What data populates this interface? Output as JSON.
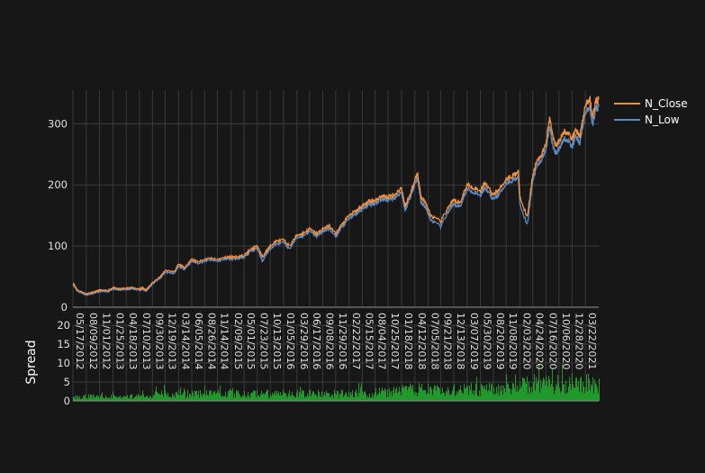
{
  "chart_data": [
    {
      "type": "line",
      "title": "",
      "xlabel": "",
      "ylabel": "",
      "ylim": [
        0,
        355
      ],
      "yticks": [
        0,
        100,
        200,
        300
      ],
      "grid": true,
      "legend_position": "top-right",
      "series": [
        {
          "name": "N_Close",
          "color": "#f0913a",
          "x": [
            "2012-05-17",
            "2012-06-15",
            "2012-08-09",
            "2012-10-01",
            "2012-11-01",
            "2012-12-20",
            "2013-01-25",
            "2013-03-01",
            "2013-04-18",
            "2013-05-20",
            "2013-07-10",
            "2013-07-29",
            "2013-08-20",
            "2013-10-01",
            "2013-11-20",
            "2013-12-19",
            "2014-02-15",
            "2014-03-14",
            "2014-04-20",
            "2014-06-05",
            "2014-07-15",
            "2014-09-26",
            "2014-11-14",
            "2015-01-10",
            "2015-02-09",
            "2015-04-01",
            "2015-05-01",
            "2015-06-15",
            "2015-07-23",
            "2015-08-25",
            "2015-09-20",
            "2015-10-13",
            "2015-11-20",
            "2016-01-05",
            "2016-02-11",
            "2016-03-29",
            "2016-05-01",
            "2016-06-17",
            "2016-08-01",
            "2016-09-08",
            "2016-10-20",
            "2016-11-29",
            "2016-12-29",
            "2017-02-22",
            "2017-04-10",
            "2017-05-15",
            "2017-06-20",
            "2017-08-04",
            "2017-09-15",
            "2017-10-25",
            "2017-12-10",
            "2018-01-18",
            "2018-02-09",
            "2018-03-15",
            "2018-04-12",
            "2018-04-30",
            "2018-05-20",
            "2018-06-20",
            "2018-07-20",
            "2018-09-21",
            "2018-11-01",
            "2018-12-13",
            "2019-01-20",
            "2019-03-07",
            "2019-04-25",
            "2019-05-30",
            "2019-06-28",
            "2019-08-14",
            "2019-09-20",
            "2019-11-08",
            "2019-12-20",
            "2020-01-24",
            "2020-02-03",
            "2020-03-20",
            "2020-04-24",
            "2020-05-20",
            "2020-06-20",
            "2020-07-16",
            "2020-08-10",
            "2020-08-26",
            "2020-09-15",
            "2020-10-06",
            "2020-11-10",
            "2020-12-28",
            "2021-01-20",
            "2021-02-15",
            "2021-03-22",
            "2021-04-20",
            "2021-05-05",
            "2021-05-25",
            "2021-06-14"
          ],
          "y": [
            40,
            28,
            22,
            25,
            28,
            27,
            32,
            30,
            31,
            32,
            30,
            32,
            28,
            40,
            50,
            60,
            58,
            70,
            65,
            78,
            75,
            80,
            78,
            82,
            82,
            83,
            85,
            95,
            100,
            82,
            92,
            100,
            108,
            110,
            100,
            118,
            120,
            128,
            120,
            128,
            133,
            120,
            132,
            150,
            158,
            165,
            172,
            175,
            182,
            180,
            185,
            195,
            165,
            185,
            210,
            218,
            180,
            170,
            150,
            140,
            160,
            175,
            170,
            200,
            195,
            190,
            205,
            185,
            190,
            210,
            215,
            222,
            180,
            148,
            215,
            240,
            250,
            270,
            310,
            280,
            265,
            270,
            290,
            275,
            290,
            280,
            330,
            340,
            310,
            335,
            340
          ]
        },
        {
          "name": "N_Low",
          "color": "#5b8cc8",
          "x": [
            "2012-05-17",
            "2012-06-15",
            "2012-08-09",
            "2012-10-01",
            "2012-11-01",
            "2012-12-20",
            "2013-01-25",
            "2013-03-01",
            "2013-04-18",
            "2013-05-20",
            "2013-07-10",
            "2013-07-29",
            "2013-08-20",
            "2013-10-01",
            "2013-11-20",
            "2013-12-19",
            "2014-02-15",
            "2014-03-14",
            "2014-04-20",
            "2014-06-05",
            "2014-07-15",
            "2014-09-26",
            "2014-11-14",
            "2015-01-10",
            "2015-02-09",
            "2015-04-01",
            "2015-05-01",
            "2015-06-15",
            "2015-07-23",
            "2015-08-25",
            "2015-09-20",
            "2015-10-13",
            "2015-11-20",
            "2016-01-05",
            "2016-02-11",
            "2016-03-29",
            "2016-05-01",
            "2016-06-17",
            "2016-08-01",
            "2016-09-08",
            "2016-10-20",
            "2016-11-29",
            "2016-12-29",
            "2017-02-22",
            "2017-04-10",
            "2017-05-15",
            "2017-06-20",
            "2017-08-04",
            "2017-09-15",
            "2017-10-25",
            "2017-12-10",
            "2018-01-18",
            "2018-02-09",
            "2018-03-15",
            "2018-04-12",
            "2018-04-30",
            "2018-05-20",
            "2018-06-20",
            "2018-07-20",
            "2018-09-21",
            "2018-11-01",
            "2018-12-13",
            "2019-01-20",
            "2019-03-07",
            "2019-04-25",
            "2019-05-30",
            "2019-06-28",
            "2019-08-14",
            "2019-09-20",
            "2019-11-08",
            "2019-12-20",
            "2020-01-24",
            "2020-02-03",
            "2020-03-20",
            "2020-04-24",
            "2020-05-20",
            "2020-06-20",
            "2020-07-16",
            "2020-08-10",
            "2020-08-26",
            "2020-09-15",
            "2020-10-06",
            "2020-11-10",
            "2020-12-28",
            "2021-01-20",
            "2021-02-15",
            "2021-03-22",
            "2021-04-20",
            "2021-05-05",
            "2021-05-25",
            "2021-06-14"
          ],
          "y": [
            38,
            26,
            20,
            23,
            26,
            25,
            30,
            28,
            29,
            30,
            28,
            30,
            26,
            38,
            48,
            57,
            55,
            67,
            62,
            75,
            72,
            77,
            75,
            79,
            79,
            80,
            82,
            92,
            96,
            75,
            88,
            96,
            103,
            106,
            95,
            114,
            116,
            124,
            116,
            124,
            128,
            115,
            128,
            145,
            153,
            160,
            167,
            170,
            177,
            175,
            180,
            188,
            158,
            180,
            203,
            210,
            172,
            162,
            143,
            132,
            153,
            168,
            164,
            193,
            188,
            183,
            197,
            178,
            183,
            203,
            208,
            213,
            168,
            135,
            206,
            232,
            242,
            260,
            295,
            265,
            252,
            258,
            278,
            262,
            280,
            268,
            318,
            327,
            298,
            323,
            328
          ]
        }
      ]
    },
    {
      "type": "bar",
      "title": "",
      "xlabel": "",
      "ylabel": "Spread",
      "ylim": [
        0,
        20
      ],
      "yticks": [
        0,
        5,
        10,
        15,
        20
      ],
      "color": "#1f9a2a",
      "grid": true,
      "x_tick_labels": [
        "05/17/2012",
        "08/09/2012",
        "11/01/2012",
        "01/25/2013",
        "04/18/2013",
        "07/10/2013",
        "09/30/2013",
        "12/19/2013",
        "03/14/2014",
        "06/05/2014",
        "08/26/2014",
        "11/14/2014",
        "02/09/2015",
        "05/01/2015",
        "07/23/2015",
        "10/13/2015",
        "01/05/2016",
        "03/29/2016",
        "06/17/2016",
        "09/08/2016",
        "11/29/2016",
        "02/22/2017",
        "05/15/2017",
        "08/04/2017",
        "10/25/2017",
        "01/18/2018",
        "04/12/2018",
        "07/05/2018",
        "09/21/2018",
        "12/13/2018",
        "03/07/2019",
        "05/30/2019",
        "08/20/2019",
        "11/08/2019",
        "02/03/2020",
        "04/24/2020",
        "07/16/2020",
        "10/06/2020",
        "12/28/2020",
        "03/22/2021"
      ],
      "series": [
        {
          "x_start": "2012-05-17",
          "x_end": "2021-06-14",
          "profile": [
            {
              "from": "2012-05-17",
              "to": "2013-09-30",
              "typical": 1.5,
              "peak": 3
            },
            {
              "from": "2013-09-30",
              "to": "2015-07-23",
              "typical": 2.5,
              "peak": 4.5
            },
            {
              "from": "2015-07-23",
              "to": "2017-08-04",
              "typical": 2.5,
              "peak": 5
            },
            {
              "from": "2017-08-04",
              "to": "2018-01-18",
              "typical": 3.5,
              "peak": 6
            },
            {
              "from": "2018-01-18",
              "to": "2019-12-01",
              "typical": 4,
              "peak": 10
            },
            {
              "from": "2019-12-01",
              "to": "2020-02-20",
              "typical": 4,
              "peak": 7
            },
            {
              "from": "2020-02-20",
              "to": "2021-06-14",
              "typical": 6,
              "peak": 11
            }
          ]
        }
      ]
    }
  ]
}
